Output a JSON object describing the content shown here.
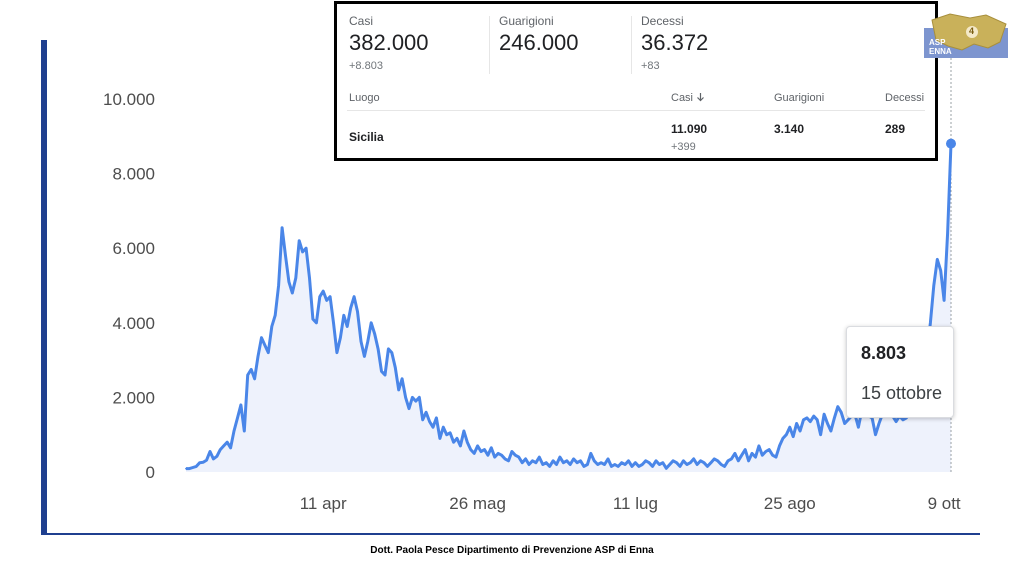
{
  "chart_data": {
    "type": "area",
    "y_ticks": [
      "0",
      "2.000",
      "4.000",
      "6.000",
      "8.000",
      "10.000"
    ],
    "ylim": [
      0,
      10000
    ],
    "x_ticks": [
      "11 apr",
      "26 mag",
      "11 lug",
      "25 ago",
      "9 ott"
    ],
    "x_tick_days": [
      41,
      86,
      132,
      177,
      222
    ],
    "series": [
      {
        "days_and_values": [
          [
            1,
            90
          ],
          [
            2,
            90
          ],
          [
            3,
            120
          ],
          [
            4,
            150
          ],
          [
            5,
            250
          ],
          [
            6,
            260
          ],
          [
            7,
            320
          ],
          [
            8,
            550
          ],
          [
            9,
            350
          ],
          [
            10,
            420
          ],
          [
            11,
            600
          ],
          [
            12,
            700
          ],
          [
            13,
            800
          ],
          [
            14,
            650
          ],
          [
            15,
            1100
          ],
          [
            16,
            1450
          ],
          [
            17,
            1800
          ],
          [
            18,
            1100
          ],
          [
            19,
            2600
          ],
          [
            20,
            2750
          ],
          [
            21,
            2500
          ],
          [
            22,
            3100
          ],
          [
            23,
            3600
          ],
          [
            24,
            3400
          ],
          [
            25,
            3200
          ],
          [
            26,
            3900
          ],
          [
            27,
            4200
          ],
          [
            28,
            5000
          ],
          [
            29,
            6550
          ],
          [
            30,
            5800
          ],
          [
            31,
            5100
          ],
          [
            32,
            4800
          ],
          [
            33,
            5200
          ],
          [
            34,
            6200
          ],
          [
            35,
            5900
          ],
          [
            36,
            6000
          ],
          [
            37,
            5200
          ],
          [
            38,
            4100
          ],
          [
            39,
            4000
          ],
          [
            40,
            4700
          ],
          [
            41,
            4850
          ],
          [
            42,
            4600
          ],
          [
            43,
            4700
          ],
          [
            44,
            4000
          ],
          [
            45,
            3200
          ],
          [
            46,
            3600
          ],
          [
            47,
            4200
          ],
          [
            48,
            3900
          ],
          [
            49,
            4400
          ],
          [
            50,
            4700
          ],
          [
            51,
            4300
          ],
          [
            52,
            3500
          ],
          [
            53,
            3100
          ],
          [
            54,
            3500
          ],
          [
            55,
            4000
          ],
          [
            56,
            3700
          ],
          [
            57,
            3300
          ],
          [
            58,
            2700
          ],
          [
            59,
            2600
          ],
          [
            60,
            3300
          ],
          [
            61,
            3200
          ],
          [
            62,
            2800
          ],
          [
            63,
            2200
          ],
          [
            64,
            2500
          ],
          [
            65,
            2000
          ],
          [
            66,
            1700
          ],
          [
            67,
            2000
          ],
          [
            68,
            1900
          ],
          [
            69,
            2000
          ],
          [
            70,
            1400
          ],
          [
            71,
            1600
          ],
          [
            72,
            1350
          ],
          [
            73,
            1200
          ],
          [
            74,
            1450
          ],
          [
            75,
            900
          ],
          [
            76,
            1200
          ],
          [
            77,
            1000
          ],
          [
            78,
            1050
          ],
          [
            79,
            800
          ],
          [
            80,
            900
          ],
          [
            81,
            700
          ],
          [
            82,
            1100
          ],
          [
            83,
            800
          ],
          [
            84,
            600
          ],
          [
            85,
            500
          ],
          [
            86,
            700
          ],
          [
            87,
            550
          ],
          [
            88,
            600
          ],
          [
            89,
            450
          ],
          [
            90,
            650
          ],
          [
            91,
            400
          ],
          [
            92,
            500
          ],
          [
            93,
            450
          ],
          [
            94,
            350
          ],
          [
            95,
            300
          ],
          [
            96,
            550
          ],
          [
            97,
            450
          ],
          [
            98,
            400
          ],
          [
            99,
            250
          ],
          [
            100,
            350
          ],
          [
            101,
            200
          ],
          [
            102,
            300
          ],
          [
            103,
            250
          ],
          [
            104,
            400
          ],
          [
            105,
            200
          ],
          [
            106,
            250
          ],
          [
            107,
            150
          ],
          [
            108,
            300
          ],
          [
            109,
            200
          ],
          [
            110,
            400
          ],
          [
            111,
            250
          ],
          [
            112,
            300
          ],
          [
            113,
            200
          ],
          [
            114,
            350
          ],
          [
            115,
            250
          ],
          [
            116,
            300
          ],
          [
            117,
            150
          ],
          [
            118,
            200
          ],
          [
            119,
            500
          ],
          [
            120,
            300
          ],
          [
            121,
            200
          ],
          [
            122,
            250
          ],
          [
            123,
            200
          ],
          [
            124,
            350
          ],
          [
            125,
            150
          ],
          [
            126,
            200
          ],
          [
            127,
            150
          ],
          [
            128,
            250
          ],
          [
            129,
            200
          ],
          [
            130,
            300
          ],
          [
            131,
            150
          ],
          [
            132,
            250
          ],
          [
            133,
            150
          ],
          [
            134,
            200
          ],
          [
            135,
            300
          ],
          [
            136,
            250
          ],
          [
            137,
            150
          ],
          [
            138,
            300
          ],
          [
            139,
            200
          ],
          [
            140,
            250
          ],
          [
            141,
            100
          ],
          [
            142,
            200
          ],
          [
            143,
            300
          ],
          [
            144,
            250
          ],
          [
            145,
            150
          ],
          [
            146,
            300
          ],
          [
            147,
            200
          ],
          [
            148,
            250
          ],
          [
            149,
            350
          ],
          [
            150,
            200
          ],
          [
            151,
            300
          ],
          [
            152,
            250
          ],
          [
            153,
            150
          ],
          [
            154,
            250
          ],
          [
            155,
            350
          ],
          [
            156,
            300
          ],
          [
            157,
            200
          ],
          [
            158,
            150
          ],
          [
            159,
            300
          ],
          [
            160,
            350
          ],
          [
            161,
            500
          ],
          [
            162,
            300
          ],
          [
            163,
            450
          ],
          [
            164,
            600
          ],
          [
            165,
            300
          ],
          [
            166,
            500
          ],
          [
            167,
            400
          ],
          [
            168,
            700
          ],
          [
            169,
            450
          ],
          [
            170,
            550
          ],
          [
            171,
            600
          ],
          [
            172,
            450
          ],
          [
            173,
            400
          ],
          [
            174,
            700
          ],
          [
            175,
            900
          ],
          [
            176,
            1000
          ],
          [
            177,
            1200
          ],
          [
            178,
            950
          ],
          [
            179,
            1300
          ],
          [
            180,
            1100
          ],
          [
            181,
            1400
          ],
          [
            182,
            1450
          ],
          [
            183,
            1350
          ],
          [
            184,
            1500
          ],
          [
            185,
            1400
          ],
          [
            186,
            1000
          ],
          [
            187,
            1550
          ],
          [
            188,
            1300
          ],
          [
            189,
            1100
          ],
          [
            190,
            1450
          ],
          [
            191,
            1750
          ],
          [
            192,
            1600
          ],
          [
            193,
            1300
          ],
          [
            194,
            1400
          ],
          [
            195,
            1500
          ],
          [
            196,
            1550
          ],
          [
            197,
            1200
          ],
          [
            198,
            1650
          ],
          [
            199,
            1600
          ],
          [
            200,
            1500
          ],
          [
            201,
            1450
          ],
          [
            202,
            1000
          ],
          [
            203,
            1300
          ],
          [
            204,
            1550
          ],
          [
            205,
            1650
          ],
          [
            206,
            1600
          ],
          [
            207,
            1500
          ],
          [
            208,
            1350
          ],
          [
            209,
            1500
          ],
          [
            210,
            1400
          ],
          [
            211,
            1450
          ],
          [
            212,
            1700
          ],
          [
            213,
            1550
          ],
          [
            214,
            1500
          ],
          [
            215,
            1700
          ],
          [
            216,
            2400
          ],
          [
            217,
            3200
          ],
          [
            218,
            4000
          ],
          [
            219,
            5000
          ],
          [
            220,
            5700
          ],
          [
            221,
            5400
          ],
          [
            222,
            4600
          ],
          [
            223,
            6400
          ],
          [
            224,
            8803
          ]
        ]
      }
    ],
    "grid": false,
    "colors": {
      "line": "#4a86e8",
      "fill": "#eef2fc",
      "left_rule": "#1f3f8f"
    }
  },
  "summary": {
    "stats": [
      {
        "label": "Casi",
        "value": "382.000",
        "delta": "+8.803"
      },
      {
        "label": "Guarigioni",
        "value": "246.000",
        "delta": ""
      },
      {
        "label": "Decessi",
        "value": "36.372",
        "delta": "+83"
      }
    ],
    "table_headers": [
      "Luogo",
      "Casi",
      "Guarigioni",
      "Decessi"
    ],
    "sort_icon": "arrow-down",
    "row": {
      "place": "Sicilia",
      "cases": "11.090",
      "cases_delta": "+399",
      "recovered": "3.140",
      "deaths": "289"
    }
  },
  "logo": {
    "line1": "ASP",
    "line2": "ENNA",
    "badge": "4"
  },
  "tooltip": {
    "value": "8.803",
    "date": "15 ottobre"
  },
  "footer": "Dott. Paola Pesce Dipartimento di Prevenzione ASP di Enna"
}
